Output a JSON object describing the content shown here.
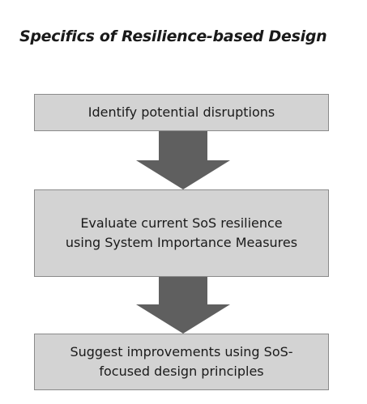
{
  "title": "Specifics of Resilience-based Design",
  "steps": [
    {
      "lines": [
        "Identify potential disruptions"
      ]
    },
    {
      "lines": [
        "Evaluate current SoS resilience",
        "using System Importance Measures"
      ]
    },
    {
      "lines": [
        "Suggest improvements using SoS-",
        "focused design principles"
      ]
    }
  ],
  "arrows": [
    "down-arrow-icon",
    "down-arrow-icon"
  ],
  "colors": {
    "box_fill": "#d3d3d3",
    "box_border": "#8a8a8a",
    "arrow_fill": "#5f5f5f"
  }
}
